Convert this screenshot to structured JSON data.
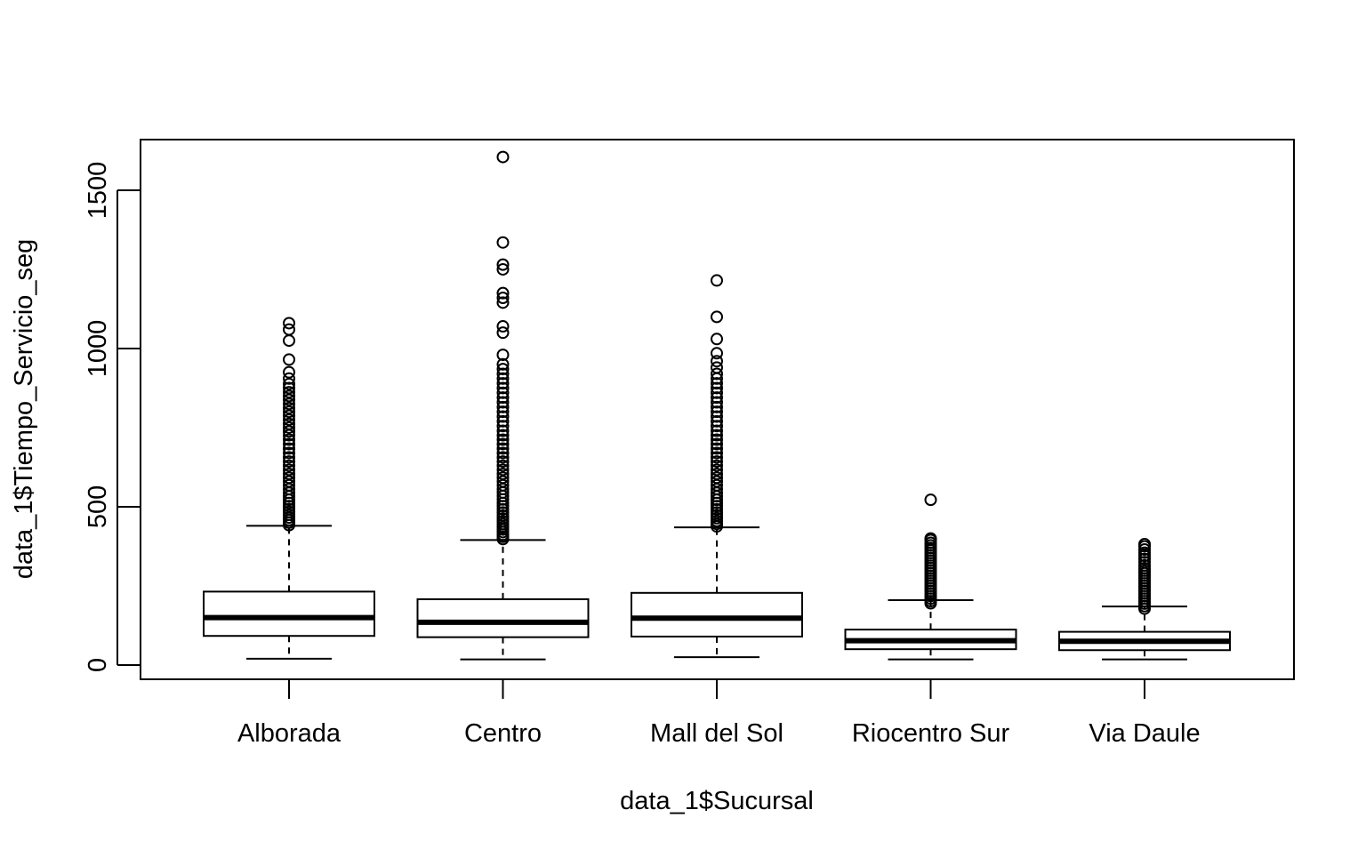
{
  "chart_data": {
    "type": "boxplot",
    "title": "",
    "xlabel": "data_1$Sucursal",
    "ylabel": "data_1$Tiempo_Servicio_seg",
    "ylim": [
      -45,
      1660
    ],
    "yticks": [
      0,
      500,
      1000,
      1500
    ],
    "grid": false,
    "legend": "none",
    "colors": {
      "stroke": "#000000",
      "background": "#ffffff"
    },
    "categories": [
      "Alborada",
      "Centro",
      "Mall del Sol",
      "Riocentro Sur",
      "Via Daule"
    ],
    "boxes": [
      {
        "category": "Alborada",
        "whisker_low": 20,
        "q1": 92,
        "median": 150,
        "q3": 232,
        "whisker_high": 440,
        "outliers": [
          442,
          450,
          458,
          466,
          475,
          484,
          493,
          502,
          512,
          522,
          533,
          544,
          556,
          568,
          580,
          592,
          604,
          617,
          630,
          643,
          656,
          670,
          684,
          698,
          712,
          726,
          738,
          750,
          762,
          775,
          788,
          800,
          812,
          825,
          838,
          850,
          862,
          875,
          888,
          905,
          925,
          965,
          1025,
          1060,
          1080
        ]
      },
      {
        "category": "Centro",
        "whisker_low": 18,
        "q1": 88,
        "median": 135,
        "q3": 208,
        "whisker_high": 395,
        "outliers": [
          398,
          405,
          412,
          420,
          428,
          436,
          445,
          454,
          463,
          472,
          482,
          492,
          502,
          512,
          523,
          534,
          545,
          556,
          568,
          580,
          592,
          604,
          617,
          630,
          643,
          656,
          670,
          684,
          698,
          712,
          726,
          740,
          755,
          770,
          785,
          800,
          815,
          830,
          845,
          860,
          875,
          890,
          905,
          920,
          935,
          950,
          980,
          1050,
          1070,
          1145,
          1160,
          1175,
          1250,
          1265,
          1335,
          1605
        ]
      },
      {
        "category": "Mall del Sol",
        "whisker_low": 25,
        "q1": 90,
        "median": 148,
        "q3": 228,
        "whisker_high": 435,
        "outliers": [
          438,
          446,
          455,
          464,
          473,
          482,
          492,
          502,
          512,
          522,
          533,
          544,
          556,
          568,
          580,
          592,
          604,
          617,
          630,
          643,
          656,
          670,
          684,
          698,
          712,
          726,
          740,
          755,
          770,
          785,
          800,
          815,
          830,
          845,
          860,
          875,
          890,
          905,
          920,
          940,
          960,
          985,
          1030,
          1100,
          1215
        ]
      },
      {
        "category": "Riocentro Sur",
        "whisker_low": 18,
        "q1": 50,
        "median": 77,
        "q3": 112,
        "whisker_high": 205,
        "outliers": [
          195,
          202,
          210,
          218,
          226,
          234,
          242,
          250,
          258,
          266,
          274,
          282,
          290,
          298,
          306,
          314,
          322,
          330,
          338,
          346,
          354,
          362,
          370,
          378,
          386,
          395,
          400,
          522
        ]
      },
      {
        "category": "Via Daule",
        "whisker_low": 18,
        "q1": 47,
        "median": 75,
        "q3": 105,
        "whisker_high": 185,
        "outliers": [
          178,
          186,
          194,
          202,
          210,
          218,
          226,
          234,
          242,
          250,
          258,
          266,
          274,
          282,
          290,
          298,
          306,
          315,
          325,
          335,
          345,
          355,
          365,
          375,
          382
        ]
      }
    ]
  }
}
